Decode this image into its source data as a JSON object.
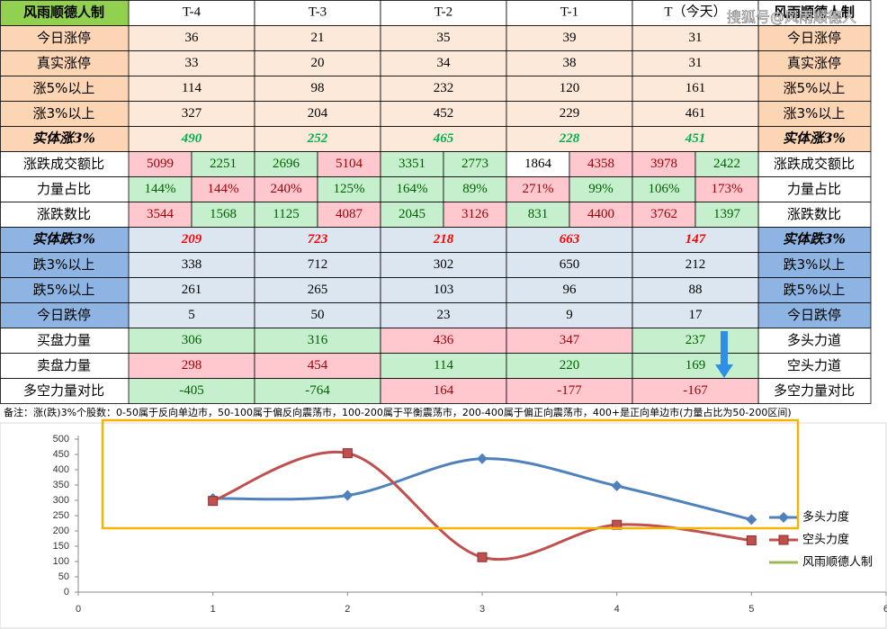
{
  "table": {
    "corner": "风雨顺德人制",
    "corner_fill": "#92d050",
    "columns": [
      "T-4",
      "T-3",
      "T-2",
      "T-1",
      "T（今天）"
    ],
    "right_header": "风雨顺德人制",
    "rows": [
      {
        "label": "今日涨停",
        "right_label": "今日涨停",
        "label_fill": "#fcd5b4",
        "fill": "#fde9d9",
        "cells": [
          36,
          21,
          35,
          39,
          31
        ]
      },
      {
        "label": "真实涨停",
        "right_label": "真实涨停",
        "label_fill": "#fcd5b4",
        "fill": "#fde9d9",
        "cells": [
          33,
          20,
          34,
          38,
          31
        ]
      },
      {
        "label": "涨5%以上",
        "right_label": "涨5%以上",
        "label_fill": "#fcd5b4",
        "fill": "#fde9d9",
        "cells": [
          114,
          98,
          232,
          120,
          161
        ]
      },
      {
        "label": "涨3%以上",
        "right_label": "涨3%以上",
        "label_fill": "#fcd5b4",
        "fill": "#fde9d9",
        "cells": [
          327,
          204,
          452,
          229,
          461
        ]
      },
      {
        "label": "实体涨3%",
        "right_label": "实体涨3%",
        "label_fill": "#fcd5b4",
        "fill": "#fde9d9",
        "italic": true,
        "value_color": "#00b050",
        "cells": [
          490,
          252,
          465,
          228,
          451
        ]
      },
      {
        "label": "涨跌成交额比",
        "right_label": "涨跌成交额比",
        "label_fill": "#ffffff",
        "cells": [
          5099,
          2251,
          2696,
          5104,
          3351,
          2773,
          1864,
          4358,
          3978,
          2422
        ],
        "cell_fills": [
          "#ffc7ce",
          "#c6efce",
          "#c6efce",
          "#ffc7ce",
          "#c6efce",
          "#c6efce",
          "#ffffff",
          "#ffc7ce",
          "#ffc7ce",
          "#c6efce"
        ]
      },
      {
        "label": "力量占比",
        "right_label": "力量占比",
        "label_fill": "#ffffff",
        "cells": [
          "144%",
          "144%",
          "240%",
          "125%",
          "164%",
          "89%",
          "271%",
          "99%",
          "106%",
          "173%"
        ],
        "cell_fills": [
          "#c6efce",
          "#ffc7ce",
          "#ffc7ce",
          "#c6efce",
          "#c6efce",
          "#c6efce",
          "#ffc7ce",
          "#c6efce",
          "#c6efce",
          "#ffc7ce"
        ]
      },
      {
        "label": "涨跌数比",
        "right_label": "涨跌数比",
        "label_fill": "#ffffff",
        "cells": [
          3544,
          1568,
          1125,
          4087,
          2045,
          3126,
          831,
          4400,
          3762,
          1397
        ],
        "cell_fills": [
          "#ffc7ce",
          "#c6efce",
          "#c6efce",
          "#ffc7ce",
          "#c6efce",
          "#ffc7ce",
          "#c6efce",
          "#ffc7ce",
          "#ffc7ce",
          "#c6efce"
        ]
      },
      {
        "label": "实体跌3%",
        "right_label": "实体跌3%",
        "label_fill": "#8db4e2",
        "fill": "#dce6f1",
        "italic": true,
        "value_color": "#ff0000",
        "cells": [
          209,
          723,
          218,
          663,
          147
        ]
      },
      {
        "label": "跌3%以上",
        "right_label": "跌3%以上",
        "label_fill": "#8db4e2",
        "fill": "#dce6f1",
        "cells": [
          338,
          712,
          302,
          650,
          212
        ]
      },
      {
        "label": "跌5%以上",
        "right_label": "跌5%以上",
        "label_fill": "#8db4e2",
        "fill": "#dce6f1",
        "cells": [
          261,
          265,
          103,
          96,
          88
        ]
      },
      {
        "label": "今日跌停",
        "right_label": "今日跌停",
        "label_fill": "#8db4e2",
        "fill": "#dce6f1",
        "cells": [
          5,
          50,
          23,
          9,
          17
        ]
      },
      {
        "label": "买盘力量",
        "right_label": "多头力道",
        "label_fill": "#ffffff",
        "cells": [
          306,
          316,
          436,
          347,
          237
        ],
        "cell_fills": [
          "#c6efce",
          "#c6efce",
          "#ffc7ce",
          "#ffc7ce",
          "#c6efce"
        ]
      },
      {
        "label": "卖盘力量",
        "right_label": "空头力道",
        "label_fill": "#ffffff",
        "cells": [
          298,
          454,
          114,
          220,
          169
        ],
        "cell_fills": [
          "#ffc7ce",
          "#ffc7ce",
          "#c6efce",
          "#c6efce",
          "#c6efce"
        ]
      },
      {
        "label": "多空力量对比",
        "right_label": "多空力量对比",
        "label_fill": "#ffffff",
        "cells": [
          -405,
          -764,
          164,
          -177,
          -167
        ],
        "cell_fills": [
          "#c6efce",
          "#c6efce",
          "#ffc7ce",
          "#ffc7ce",
          "#ffc7ce"
        ]
      }
    ]
  },
  "watermark": "搜狐号@风雨顺德人",
  "note": "备注：涨(跌)3%个股数：0-50属于反向单边市，50-100属于偏反向震荡市，100-200属于平衡震荡市，200-400属于偏正向震荡市，400+是正向单边市(力量占比为50-200区间)",
  "chart_data": {
    "type": "line",
    "x": [
      1,
      2,
      3,
      4,
      5
    ],
    "xlim": [
      0,
      6
    ],
    "xticks": [
      0,
      1,
      2,
      3,
      4,
      5,
      6
    ],
    "ylim": [
      0,
      500
    ],
    "yticks": [
      0,
      50,
      100,
      150,
      200,
      250,
      300,
      350,
      400,
      450,
      500
    ],
    "smooth": true,
    "legend": "right",
    "series": [
      {
        "name": "多头力度",
        "color": "#4f81bd",
        "marker": "diamond",
        "values": [
          306,
          316,
          436,
          347,
          237
        ]
      },
      {
        "name": "空头力度",
        "color": "#c0504d",
        "marker": "square",
        "values": [
          298,
          454,
          114,
          220,
          169
        ]
      },
      {
        "name": "风雨顺德人制",
        "color": "#9bbb59",
        "values": [
          null,
          null,
          null,
          null,
          null
        ]
      }
    ]
  }
}
